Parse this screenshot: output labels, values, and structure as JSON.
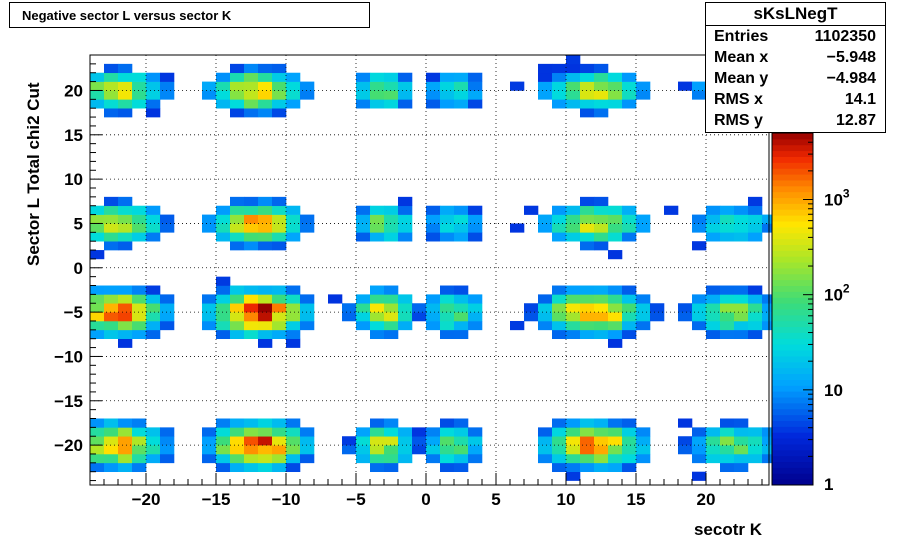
{
  "title": "Negative sector L versus sector K",
  "stats": {
    "name": "sKsLNegT",
    "rows": [
      {
        "label": "Entries",
        "value": "1102350"
      },
      {
        "label": "Mean x",
        "value": "−5.948"
      },
      {
        "label": "Mean y",
        "value": "−4.984"
      },
      {
        "label": "RMS x",
        "value": "14.1"
      },
      {
        "label": "RMS y",
        "value": "12.87"
      }
    ]
  },
  "chart_data": {
    "type": "heatmap",
    "title": "Negative sector L versus sector K",
    "xlabel": "secotr K",
    "ylabel": "Sector L  Total chi2 Cut",
    "xlim": [
      -24,
      24.5
    ],
    "ylim": [
      -24.5,
      24
    ],
    "xticks": [
      -20,
      -15,
      -10,
      -5,
      0,
      5,
      10,
      15,
      20
    ],
    "xtick_labels": [
      "−20",
      "−15",
      "−10",
      "−5",
      "0",
      "5",
      "10",
      "15",
      "20"
    ],
    "yticks": [
      -20,
      -15,
      -10,
      -5,
      0,
      5,
      10,
      15,
      20
    ],
    "ytick_labels": [
      "−20",
      "−15",
      "−10",
      "−5",
      "0",
      "5",
      "10",
      "15",
      "20"
    ],
    "grid": true,
    "color_scale": "log",
    "zlim": [
      1,
      5000
    ],
    "colorbar_ticks": [
      1,
      10,
      100,
      1000
    ],
    "colorbar_labels": [
      {
        "base": "1",
        "exp": ""
      },
      {
        "base": "10",
        "exp": ""
      },
      {
        "base": "10",
        "exp": "2"
      },
      {
        "base": "10",
        "exp": "3"
      }
    ],
    "entries": 1102350,
    "mean_x": -5.948,
    "mean_y": -4.984,
    "rms_x": 14.1,
    "rms_y": 12.87,
    "clusters_note_x_centers": [
      -22,
      -12,
      -3,
      2,
      12,
      22
    ],
    "clusters_note_y_centers": [
      -20,
      -5,
      5,
      20
    ]
  }
}
